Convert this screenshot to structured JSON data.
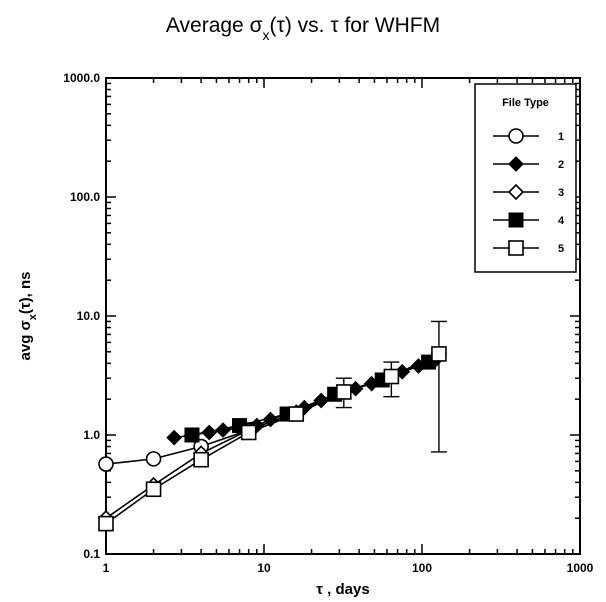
{
  "chart_data": {
    "type": "line",
    "title": "Average σ",
    "title_sub": "x",
    "title_rest": "(τ) vs. τ for WHFM",
    "xlabel": "τ , days",
    "ylabel": "avg σ",
    "ylabel_sub": "x",
    "ylabel_rest": "(τ), ns",
    "x_scale": "log",
    "y_scale": "log",
    "xlim": [
      1,
      1000
    ],
    "ylim": [
      0.1,
      1000
    ],
    "x_ticks": [
      1,
      10,
      100,
      1000
    ],
    "x_tick_labels": [
      "1",
      "10",
      "100",
      "1000"
    ],
    "y_ticks": [
      0.1,
      1,
      10,
      100,
      1000
    ],
    "y_tick_labels": [
      "0.1",
      "1.0",
      "10.0",
      "100.0",
      "1000.0"
    ],
    "grid": false,
    "legend": {
      "title": "File Type",
      "position": "top-right"
    },
    "series": [
      {
        "name": "1",
        "marker": "open-circle",
        "x": [
          1,
          2,
          4,
          8
        ],
        "y": [
          0.57,
          0.63,
          0.8,
          1.1
        ]
      },
      {
        "name": "2",
        "marker": "filled-diamond",
        "x": [
          2.7,
          3.5,
          4.5,
          5.5,
          7,
          9,
          11,
          14,
          18,
          23,
          30,
          38,
          48,
          60,
          75,
          95,
          120
        ],
        "y": [
          0.95,
          1.0,
          1.05,
          1.1,
          1.15,
          1.2,
          1.35,
          1.5,
          1.7,
          1.95,
          2.25,
          2.45,
          2.7,
          3.0,
          3.4,
          3.8,
          4.2
        ]
      },
      {
        "name": "3",
        "marker": "open-diamond",
        "x": [
          1,
          2,
          4,
          8,
          16,
          32,
          64,
          128
        ],
        "y": [
          0.2,
          0.38,
          0.7,
          1.1,
          1.55,
          2.3,
          3.1,
          4.8
        ]
      },
      {
        "name": "4",
        "marker": "filled-square",
        "x": [
          3.5,
          7,
          14,
          28,
          56,
          110
        ],
        "y": [
          1.0,
          1.2,
          1.5,
          2.2,
          2.9,
          4.1
        ]
      },
      {
        "name": "5",
        "marker": "open-square",
        "x": [
          1,
          2,
          4,
          8,
          16,
          32,
          64,
          128
        ],
        "y": [
          0.18,
          0.35,
          0.62,
          1.05,
          1.5,
          2.3,
          3.1,
          4.8
        ]
      }
    ],
    "error_bars": [
      {
        "x": 32,
        "y": 2.3,
        "low": 1.7,
        "high": 3.0
      },
      {
        "x": 64,
        "y": 3.1,
        "low": 2.1,
        "high": 4.1
      },
      {
        "x": 128,
        "y": 4.8,
        "low": 0.72,
        "high": 9.0
      }
    ]
  }
}
